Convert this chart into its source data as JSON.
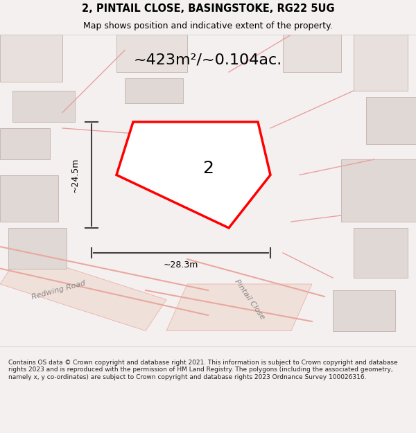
{
  "title": "2, PINTAIL CLOSE, BASINGSTOKE, RG22 5UG",
  "subtitle": "Map shows position and indicative extent of the property.",
  "area_text": "~423m²/~0.104ac.",
  "label": "2",
  "dim_h": "~24.5m",
  "dim_w": "~28.3m",
  "road_label1": "Redwing Road",
  "road_label2": "Pintail Close",
  "footer": "Contains OS data © Crown copyright and database right 2021. This information is subject to Crown copyright and database rights 2023 and is reproduced with the permission of HM Land Registry. The polygons (including the associated geometry, namely x, y co-ordinates) are subject to Crown copyright and database rights 2023 Ordnance Survey 100026316.",
  "bg_color": "#f5f0f0",
  "map_bg": "#f0ebe8",
  "plot_color": "#ff0000",
  "plot_fill": "#ffffff",
  "building_fill": "#d8d0cc",
  "building_edge": "#c8b8b0",
  "road_color": "#e8a8a0",
  "road_fill": "#f5ede8",
  "dim_color": "#404040",
  "text_color": "#000000",
  "footer_color": "#222222"
}
